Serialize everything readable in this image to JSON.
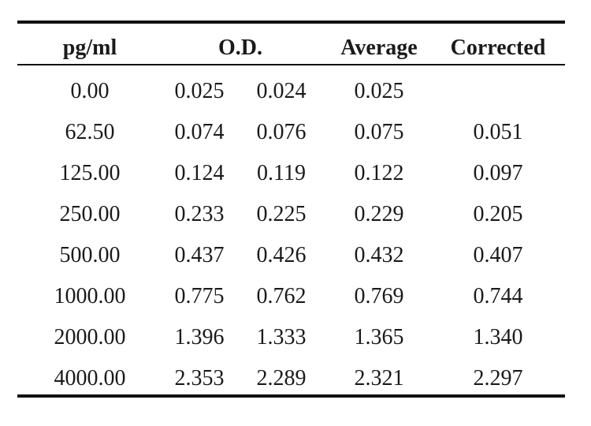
{
  "table": {
    "headers": {
      "concentration": "pg/ml",
      "od": "O.D.",
      "average": "Average",
      "corrected": "Corrected"
    },
    "rows": [
      {
        "conc": "0.00",
        "od1": "0.025",
        "od2": "0.024",
        "avg": "0.025",
        "corr": ""
      },
      {
        "conc": "62.50",
        "od1": "0.074",
        "od2": "0.076",
        "avg": "0.075",
        "corr": "0.051"
      },
      {
        "conc": "125.00",
        "od1": "0.124",
        "od2": "0.119",
        "avg": "0.122",
        "corr": "0.097"
      },
      {
        "conc": "250.00",
        "od1": "0.233",
        "od2": "0.225",
        "avg": "0.229",
        "corr": "0.205"
      },
      {
        "conc": "500.00",
        "od1": "0.437",
        "od2": "0.426",
        "avg": "0.432",
        "corr": "0.407"
      },
      {
        "conc": "1000.00",
        "od1": "0.775",
        "od2": "0.762",
        "avg": "0.769",
        "corr": "0.744"
      },
      {
        "conc": "2000.00",
        "od1": "1.396",
        "od2": "1.333",
        "avg": "1.365",
        "corr": "1.340"
      },
      {
        "conc": "4000.00",
        "od1": "2.353",
        "od2": "2.289",
        "avg": "2.321",
        "corr": "2.297"
      }
    ]
  }
}
